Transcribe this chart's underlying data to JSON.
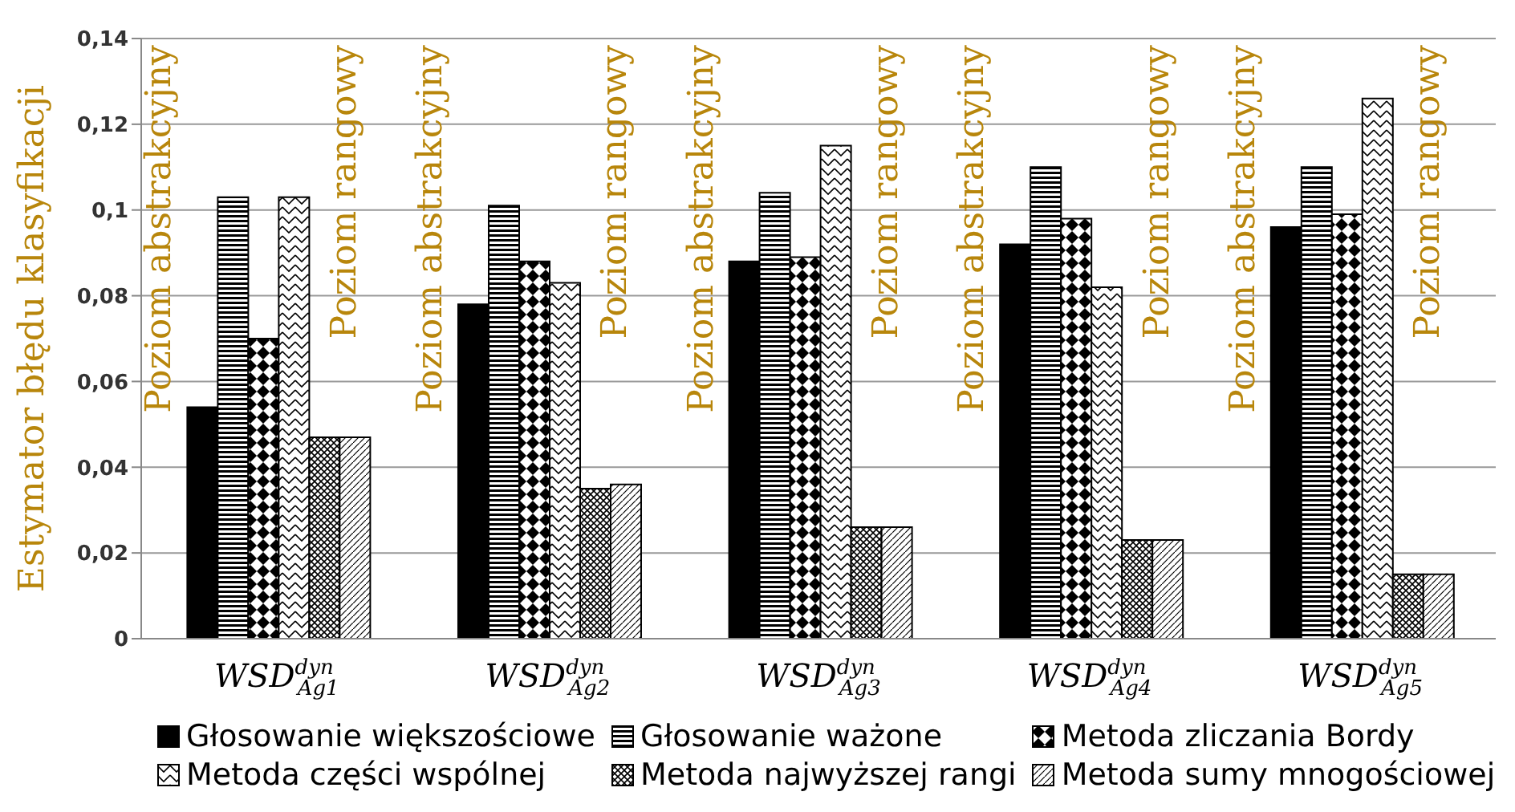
{
  "chart_data": {
    "type": "bar",
    "ylabel": "Estymator błędu klasyfikacji",
    "categories": [
      "WSD$^{dyn}$$_{Ag1}$",
      "WSD$^{dyn}$$_{Ag2}$",
      "WSD$^{dyn}$$_{Ag3}$",
      "WSD$^{dyn}$$_{Ag4}$",
      "WSD$^{dyn}$$_{Ag5}$"
    ],
    "series": [
      {
        "name": "Głosowanie większościowe",
        "color": "#000000",
        "values": [
          0.054,
          0.078,
          0.088,
          0.092,
          0.096
        ]
      },
      {
        "name": "Głosowanie ważone",
        "color": "#000000",
        "values": [
          0.103,
          0.101,
          0.104,
          0.11,
          0.11
        ]
      },
      {
        "name": "Metoda zliczania Bordy",
        "color": "#000000",
        "values": [
          0.07,
          0.088,
          0.089,
          0.098,
          0.099
        ]
      },
      {
        "name": "Metoda części wspólnej",
        "color": "#000000",
        "values": [
          0.103,
          0.083,
          0.115,
          0.082,
          0.126
        ]
      },
      {
        "name": "Metoda najwyższej rangi",
        "color": "#000000",
        "values": [
          0.047,
          0.035,
          0.026,
          0.023,
          0.015
        ]
      },
      {
        "name": "Metoda sumy mnogościowej",
        "color": "#000000",
        "values": [
          0.047,
          0.036,
          0.026,
          0.023,
          0.015
        ]
      }
    ],
    "ylim": [
      0,
      0.14
    ],
    "yticks": [
      0,
      {
        "value": 0.02,
        "label": "0,02"
      },
      {
        "value": 0.04,
        "label": "0,04"
      },
      {
        "value": 0.06,
        "label": "0,06"
      },
      {
        "value": 0.08,
        "label": "0,08"
      },
      {
        "value": 0.1,
        "label": "0,1"
      },
      {
        "value": 0.12,
        "label": "0,12"
      },
      {
        "value": 0.14,
        "label": "0,14"
      }
    ],
    "grid": "y",
    "legend": "bottom",
    "annotations": [
      "Poziom abstrakcyjny",
      "Poziom rangowy",
      "Poziom abstrakcyjny",
      "Poziom rangowy",
      "Poziom abstrakcyjny",
      "Poziom rangowy",
      "Poziom abstrakcyjny",
      "Poziom rangowy",
      "Poziom abstrakcyjny",
      "Poziom rangowy"
    ]
  }
}
